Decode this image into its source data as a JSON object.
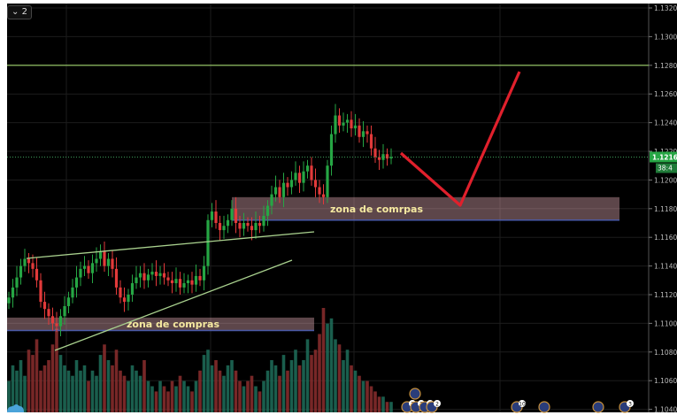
{
  "legend_toggle": {
    "icon": "chevron-down-icon",
    "label": "2"
  },
  "price_tag": {
    "price": "1.1216",
    "countdown": "38:4",
    "color": "#26a644"
  },
  "colors": {
    "background": "#000000",
    "up": "#26a644",
    "down": "#e23a3a",
    "trendline": "#a9d18e",
    "resistance": "#9fd36e",
    "arrow": "#e0202c",
    "zone": "#f4b7c3"
  },
  "chart_data": {
    "type": "candlestick",
    "ylim": [
      1.104,
      1.132
    ],
    "y_ticks": [
      "1.1320",
      "1.1300",
      "1.1280",
      "1.1260",
      "1.1240",
      "1.1220",
      "1.1200",
      "1.1180",
      "1.1160",
      "1.1140",
      "1.1120",
      "1.1100",
      "1.1080",
      "1.1060",
      "1.1040"
    ],
    "grid": true,
    "close": [
      1.1118,
      1.1125,
      1.1132,
      1.114,
      1.1145,
      1.1142,
      1.1138,
      1.113,
      1.1115,
      1.111,
      1.1105,
      1.11,
      1.1098,
      1.1105,
      1.1112,
      1.1118,
      1.1125,
      1.1132,
      1.1138,
      1.114,
      1.1135,
      1.1142,
      1.1145,
      1.115,
      1.114,
      1.1145,
      1.1138,
      1.1125,
      1.1118,
      1.1115,
      1.112,
      1.1128,
      1.1132,
      1.1135,
      1.113,
      1.1134,
      1.1136,
      1.1133,
      1.1135,
      1.1132,
      1.113,
      1.1128,
      1.1131,
      1.1125,
      1.1128,
      1.113,
      1.1127,
      1.1133,
      1.113,
      1.114,
      1.1172,
      1.1178,
      1.117,
      1.1165,
      1.1168,
      1.1172,
      1.118,
      1.117,
      1.1166,
      1.117,
      1.1168,
      1.1165,
      1.117,
      1.1168,
      1.1175,
      1.1182,
      1.119,
      1.1195,
      1.1188,
      1.1198,
      1.1195,
      1.12,
      1.1205,
      1.1198,
      1.1206,
      1.121,
      1.12,
      1.1195,
      1.119,
      1.1188,
      1.121,
      1.1232,
      1.1245,
      1.1238,
      1.124,
      1.1242,
      1.1236,
      1.1238,
      1.123,
      1.1234,
      1.1232,
      1.1222,
      1.1216,
      1.1214,
      1.1218,
      1.1215,
      1.1216
    ],
    "volume": [
      30,
      45,
      40,
      50,
      35,
      60,
      55,
      70,
      40,
      45,
      50,
      65,
      80,
      55,
      45,
      40,
      35,
      50,
      40,
      45,
      30,
      40,
      35,
      55,
      65,
      50,
      45,
      60,
      40,
      35,
      30,
      45,
      40,
      35,
      50,
      30,
      25,
      20,
      30,
      25,
      20,
      30,
      25,
      35,
      30,
      25,
      20,
      30,
      40,
      55,
      60,
      45,
      50,
      40,
      35,
      45,
      50,
      40,
      30,
      25,
      30,
      35,
      25,
      20,
      30,
      40,
      50,
      45,
      35,
      55,
      40,
      50,
      60,
      45,
      50,
      70,
      55,
      60,
      75,
      100,
      85,
      90,
      70,
      65,
      50,
      60,
      45,
      40,
      35,
      30,
      30,
      25,
      20,
      15,
      15,
      10,
      10
    ],
    "horizontal_line": 1.128,
    "current_price": 1.1216,
    "zones": [
      {
        "label": "zona de comrpas",
        "from": 1.1172,
        "to": 1.1188
      },
      {
        "label": "zona de compras",
        "from": 1.1095,
        "to": 1.1104
      }
    ],
    "events": [
      "2",
      "2",
      "1",
      "2",
      "10",
      "3"
    ]
  }
}
